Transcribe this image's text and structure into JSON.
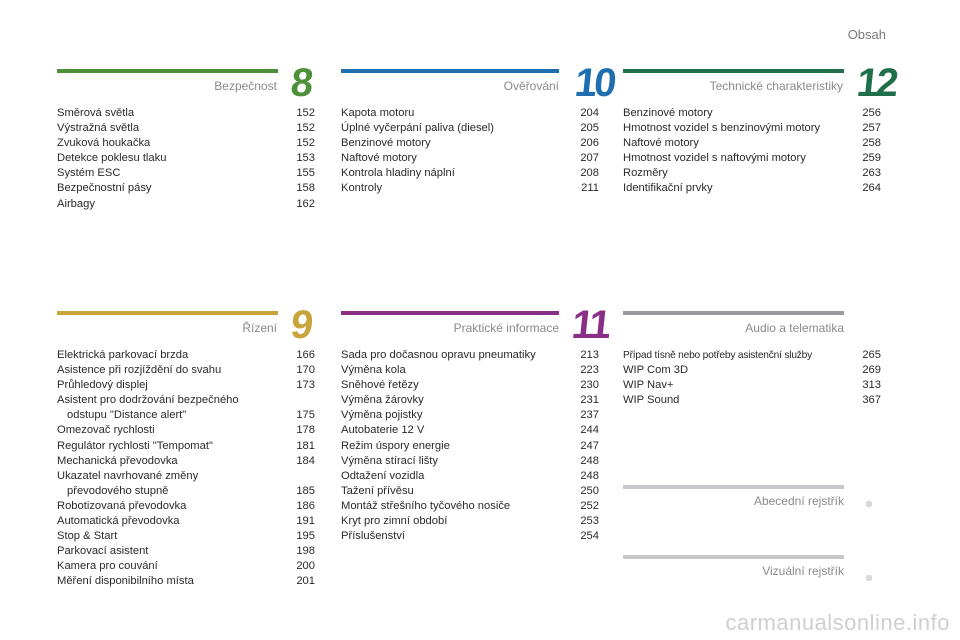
{
  "header": {
    "title": "Obsah"
  },
  "sections": [
    {
      "key": "s8",
      "title": "Bezpečnost",
      "number": "8",
      "color": "#4e8f3a",
      "items": [
        {
          "t": "Směrová světla",
          "p": "152"
        },
        {
          "t": "Výstražná světla",
          "p": "152"
        },
        {
          "t": "Zvuková houkačka",
          "p": "152"
        },
        {
          "t": "Detekce poklesu tlaku",
          "p": "153"
        },
        {
          "t": "Systém ESC",
          "p": "155"
        },
        {
          "t": "Bezpečnostní pásy",
          "p": "158"
        },
        {
          "t": "Airbagy",
          "p": "162"
        }
      ]
    },
    {
      "key": "s10",
      "title": "Ověřování",
      "number": "10",
      "color": "#1f6fb0",
      "items": [
        {
          "t": "Kapota motoru",
          "p": "204"
        },
        {
          "t": "Úplné vyčerpání paliva (diesel)",
          "p": "205"
        },
        {
          "t": "Benzinové motory",
          "p": "206"
        },
        {
          "t": "Naftové motory",
          "p": "207"
        },
        {
          "t": "Kontrola hladiny náplní",
          "p": "208"
        },
        {
          "t": "Kontroly",
          "p": "211"
        }
      ]
    },
    {
      "key": "s12",
      "title": "Technické charakteristiky",
      "number": "12",
      "color": "#1e6f4a",
      "items": [
        {
          "t": "Benzinové motory",
          "p": "256"
        },
        {
          "t": "Hmotnost vozidel s benzinovými motory",
          "p": "257"
        },
        {
          "t": "Naftové motory",
          "p": "258"
        },
        {
          "t": "Hmotnost vozidel s naftovými motory",
          "p": "259"
        },
        {
          "t": "Rozměry",
          "p": "263"
        },
        {
          "t": "Identifikační prvky",
          "p": "264"
        }
      ]
    },
    {
      "key": "s9",
      "title": "Řízení",
      "number": "9",
      "color": "#c9a43a",
      "items": [
        {
          "t": "Elektrická parkovací brzda",
          "p": "166"
        },
        {
          "t": "Asistence při rozjíždění do svahu",
          "p": "170"
        },
        {
          "t": "Průhledový displej",
          "p": "173"
        },
        {
          "t": "Asistent pro dodržování bezpečného",
          "t2": "odstupu \"Distance alert\"",
          "p": "175"
        },
        {
          "t": "Omezovač rychlosti",
          "p": "178"
        },
        {
          "t": "Regulátor rychlosti \"Tempomat\"",
          "p": "181"
        },
        {
          "t": "Mechanická převodovka",
          "p": "184"
        },
        {
          "t": "Ukazatel navrhované změny",
          "t2": "převodového stupně",
          "p": "185"
        },
        {
          "t": "Robotizovaná převodovka",
          "p": "186"
        },
        {
          "t": "Automatická převodovka",
          "p": "191"
        },
        {
          "t": "Stop & Start",
          "p": "195"
        },
        {
          "t": "Parkovací asistent",
          "p": "198"
        },
        {
          "t": "Kamera pro couvání",
          "p": "200"
        },
        {
          "t": "Měření disponibilního místa",
          "p": "201"
        }
      ]
    },
    {
      "key": "s11",
      "title": "Praktické informace",
      "number": "11",
      "color": "#8a2f86",
      "items": [
        {
          "t": "Sada pro dočasnou opravu pneumatiky",
          "p": "213"
        },
        {
          "t": "Výměna kola",
          "p": "223"
        },
        {
          "t": "Sněhové řetězy",
          "p": "230"
        },
        {
          "t": "Výměna žárovky",
          "p": "231"
        },
        {
          "t": "Výměna pojistky",
          "p": "237"
        },
        {
          "t": "Autobaterie 12 V",
          "p": "244"
        },
        {
          "t": "Režim úspory energie",
          "p": "247"
        },
        {
          "t": "Výměna stírací lišty",
          "p": "248"
        },
        {
          "t": "Odtažení vozidla",
          "p": "248"
        },
        {
          "t": "Tažení přívěsu",
          "p": "250"
        },
        {
          "t": "Montáž střešního tyčového nosiče",
          "p": "252"
        },
        {
          "t": "Kryt pro zimní období",
          "p": "253"
        },
        {
          "t": "Příslušenství",
          "p": "254"
        }
      ]
    },
    {
      "key": "sAudio",
      "title": "Audio a telematika",
      "number": "",
      "color": "#9b9b9f",
      "items": [
        {
          "t": "Případ tísně nebo potřeby asistenční služby",
          "p": "265"
        },
        {
          "t": "WIP Com 3D",
          "p": "269"
        },
        {
          "t": "WIP Nav+",
          "p": "313"
        },
        {
          "t": "WIP Sound",
          "p": "367"
        }
      ]
    }
  ],
  "extras": [
    {
      "title": "Abecední rejstřík"
    },
    {
      "title": "Vizuální rejstřík"
    }
  ],
  "watermark": "carmanualsonline.info"
}
